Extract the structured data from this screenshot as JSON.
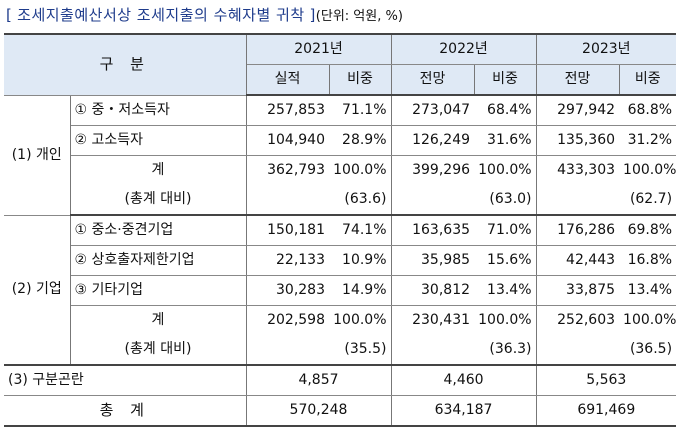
{
  "title": {
    "open_bracket": "[",
    "main": "조세지출예산서상 조세지출의 수혜자별 귀착",
    "close_bracket": "]",
    "unit": "(단위: 억원, %)"
  },
  "header": {
    "category": "구 분",
    "years": [
      "2021년",
      "2022년",
      "2023년"
    ],
    "sub": [
      "실적",
      "비중",
      "전망",
      "비중",
      "전망",
      "비중"
    ]
  },
  "sections": {
    "individual": {
      "label": "(1) 개인",
      "rows": [
        {
          "marker": "①",
          "label": "중・저소득자",
          "v": [
            "257,853",
            "71.1%",
            "273,047",
            "68.4%",
            "297,942",
            "68.8%"
          ]
        },
        {
          "marker": "②",
          "label": "고소득자",
          "v": [
            "104,940",
            "28.9%",
            "126,249",
            "31.6%",
            "135,360",
            "31.2%"
          ]
        }
      ],
      "subtotal": {
        "label": "계",
        "v": [
          "362,793",
          "100.0%",
          "399,296",
          "100.0%",
          "433,303",
          "100.0%"
        ]
      },
      "ratio": {
        "label": "(총계 대비)",
        "v": [
          "(63.6)",
          "(63.0)",
          "(62.7)"
        ]
      }
    },
    "business": {
      "label": "(2) 기업",
      "rows": [
        {
          "marker": "①",
          "label": "중소·중견기업",
          "v": [
            "150,181",
            "74.1%",
            "163,635",
            "71.0%",
            "176,286",
            "69.8%"
          ]
        },
        {
          "marker": "②",
          "label": "상호출자제한기업",
          "v": [
            "22,133",
            "10.9%",
            "35,985",
            "15.6%",
            "42,443",
            "16.8%"
          ]
        },
        {
          "marker": "③",
          "label": "기타기업",
          "v": [
            "30,283",
            "14.9%",
            "30,812",
            "13.4%",
            "33,875",
            "13.4%"
          ]
        }
      ],
      "subtotal": {
        "label": "계",
        "v": [
          "202,598",
          "100.0%",
          "230,431",
          "100.0%",
          "252,603",
          "100.0%"
        ]
      },
      "ratio": {
        "label": "(총계 대비)",
        "v": [
          "(35.5)",
          "(36.3)",
          "(36.5)"
        ]
      }
    },
    "unclassified": {
      "label": "(3) 구분곤란",
      "v": [
        "4,857",
        "4,460",
        "5,563"
      ]
    },
    "total": {
      "label": "총 계",
      "v": [
        "570,248",
        "634,187",
        "691,469"
      ]
    }
  }
}
